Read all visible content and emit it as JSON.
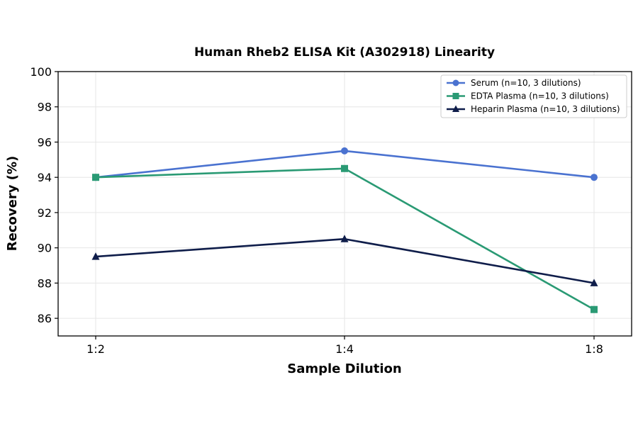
{
  "chart_data": {
    "type": "line",
    "title": "Human Rheb2 ELISA Kit (A302918) Linearity",
    "xlabel": "Sample Dilution",
    "ylabel": "Recovery (%)",
    "categories": [
      "1:2",
      "1:4",
      "1:8"
    ],
    "ylim": [
      85,
      100
    ],
    "yticks": [
      86,
      88,
      90,
      92,
      94,
      96,
      98,
      100
    ],
    "grid": true,
    "legend_position": "top-right",
    "series": [
      {
        "name": "Serum (n=10, 3 dilutions)",
        "values": [
          94.0,
          95.5,
          94.0
        ],
        "color": "#4a72d0",
        "marker": "circle"
      },
      {
        "name": "EDTA Plasma (n=10, 3 dilutions)",
        "values": [
          94.0,
          94.5,
          86.5
        ],
        "color": "#2a9a74",
        "marker": "square"
      },
      {
        "name": "Heparin Plasma (n=10, 3 dilutions)",
        "values": [
          89.5,
          90.5,
          88.0
        ],
        "color": "#0f1d4a",
        "marker": "triangle"
      }
    ]
  }
}
